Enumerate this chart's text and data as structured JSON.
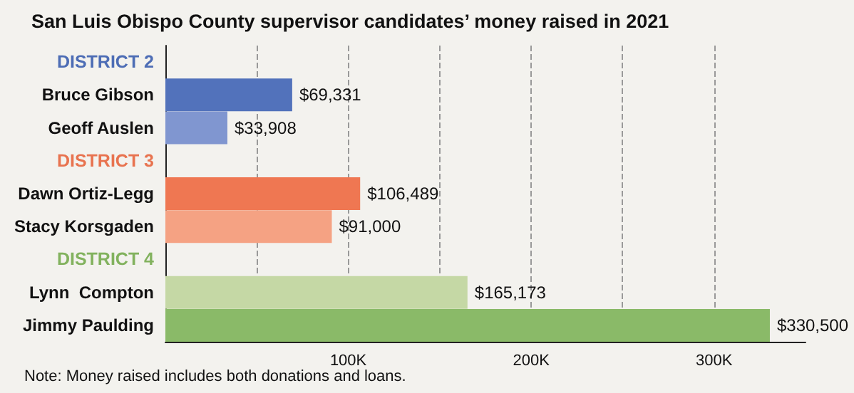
{
  "chart_data": {
    "type": "bar",
    "orientation": "horizontal",
    "title": "San Luis Obispo County supervisor candidates’ money raised in 2021",
    "categories": [
      "DISTRICT 2",
      "Bruce Gibson",
      "Geoff Auslen",
      "DISTRICT 3",
      "Dawn Ortiz-Legg",
      "Stacy Korsgaden",
      "DISTRICT 4",
      "Lynn  Compton",
      "Jimmy Paulding"
    ],
    "values": [
      null,
      69331,
      33908,
      null,
      106489,
      91000,
      null,
      165173,
      330500
    ],
    "value_labels": [
      null,
      "$69,331",
      "$33,908",
      null,
      "$106,489",
      "$91,000",
      null,
      "$165,173",
      "$330,500"
    ],
    "colors": [
      "#4d6db5",
      "#5272bb",
      "#8096d0",
      "#e8734f",
      "#ef7752",
      "#f5a283",
      "#82b25e",
      "#c5d8a5",
      "#8aba68"
    ],
    "xlim": [
      0,
      350000
    ],
    "xticks": [
      {
        "value": 50000,
        "label": null
      },
      {
        "value": 100000,
        "label": "100K"
      },
      {
        "value": 150000,
        "label": null
      },
      {
        "value": 200000,
        "label": "200K"
      },
      {
        "value": 250000,
        "label": null
      },
      {
        "value": 300000,
        "label": "300K"
      }
    ],
    "grid": "x",
    "annotations": [
      "Note: Money raised includes both donations and loans."
    ]
  }
}
